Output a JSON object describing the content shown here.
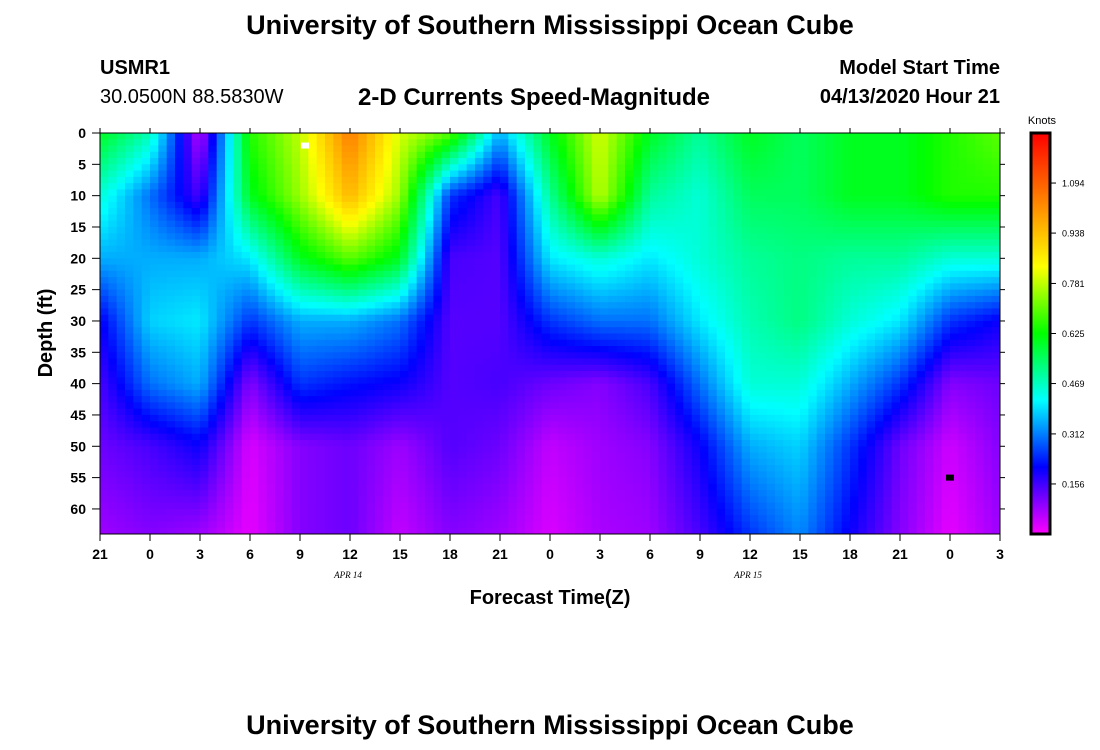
{
  "header": {
    "title": "University of Southern Mississippi Ocean Cube",
    "station_id": "USMR1",
    "coords": "30.0500N 88.5830W",
    "plot_title": "2-D Currents Speed-Magnitude",
    "model_label": "Model Start Time",
    "model_time": "04/13/2020 Hour 21"
  },
  "footer": {
    "title": "University of Southern Mississippi Ocean Cube"
  },
  "chart_data": {
    "type": "heatmap",
    "title": "2-D Currents Speed-Magnitude",
    "xlabel": "Forecast Time(Z)",
    "ylabel": "Depth (ft)",
    "x_ticks": [
      "21",
      "0",
      "3",
      "6",
      "9",
      "12",
      "15",
      "18",
      "21",
      "0",
      "3",
      "6",
      "9",
      "12",
      "15",
      "18",
      "21",
      "0",
      "3"
    ],
    "x_range_hours": [
      0,
      54
    ],
    "date_labels": [
      {
        "text": "APR 14",
        "hour": 15
      },
      {
        "text": "APR 15",
        "hour": 39
      }
    ],
    "y_ticks": [
      0,
      5,
      10,
      15,
      20,
      25,
      30,
      35,
      40,
      45,
      50,
      55,
      60
    ],
    "y_range": [
      0,
      64
    ],
    "colorbar": {
      "label": "Knots",
      "ticks": [
        "1.094",
        "0.938",
        "0.781",
        "0.625",
        "0.469",
        "0.312",
        "0.156"
      ],
      "range": [
        0,
        1.25
      ],
      "colors": [
        "#ff00ff",
        "#0000ff",
        "#00ffff",
        "#00ff00",
        "#ffff00",
        "#ff8000",
        "#ff0000"
      ]
    },
    "grid_hours": [
      0,
      3,
      6,
      9,
      12,
      15,
      18,
      21,
      24,
      27,
      30,
      33,
      36,
      39,
      42,
      45,
      48,
      51,
      54
    ],
    "grid_depths": [
      0,
      10,
      20,
      30,
      40,
      50,
      64
    ],
    "values": [
      [
        0.6,
        0.48,
        0.05,
        0.65,
        0.78,
        1.05,
        0.8,
        0.7,
        0.35,
        0.6,
        0.8,
        0.6,
        0.5,
        0.6,
        0.55,
        0.6,
        0.6,
        0.65,
        0.7
      ],
      [
        0.45,
        0.3,
        0.15,
        0.6,
        0.75,
        0.95,
        0.75,
        0.25,
        0.15,
        0.5,
        0.78,
        0.5,
        0.45,
        0.55,
        0.55,
        0.6,
        0.6,
        0.65,
        0.65
      ],
      [
        0.35,
        0.35,
        0.35,
        0.4,
        0.6,
        0.7,
        0.6,
        0.15,
        0.14,
        0.4,
        0.45,
        0.4,
        0.45,
        0.5,
        0.52,
        0.5,
        0.5,
        0.45,
        0.45
      ],
      [
        0.2,
        0.38,
        0.4,
        0.25,
        0.35,
        0.35,
        0.3,
        0.14,
        0.14,
        0.25,
        0.3,
        0.3,
        0.4,
        0.48,
        0.52,
        0.45,
        0.4,
        0.25,
        0.2
      ],
      [
        0.15,
        0.3,
        0.35,
        0.1,
        0.25,
        0.22,
        0.2,
        0.14,
        0.15,
        0.12,
        0.1,
        0.15,
        0.3,
        0.45,
        0.45,
        0.35,
        0.25,
        0.1,
        0.12
      ],
      [
        0.12,
        0.15,
        0.2,
        0.03,
        0.1,
        0.12,
        0.08,
        0.14,
        0.12,
        0.05,
        0.08,
        0.1,
        0.2,
        0.35,
        0.38,
        0.25,
        0.12,
        0.04,
        0.1
      ],
      [
        0.08,
        0.1,
        0.08,
        0.02,
        0.1,
        0.12,
        0.05,
        0.1,
        0.08,
        0.03,
        0.07,
        0.08,
        0.15,
        0.25,
        0.32,
        0.2,
        0.1,
        0.02,
        0.08
      ]
    ],
    "markers": [
      {
        "hour": 12.3,
        "depth": 2,
        "color": "#ffffff"
      },
      {
        "hour": 51,
        "depth": 55,
        "color": "#000000"
      }
    ]
  }
}
